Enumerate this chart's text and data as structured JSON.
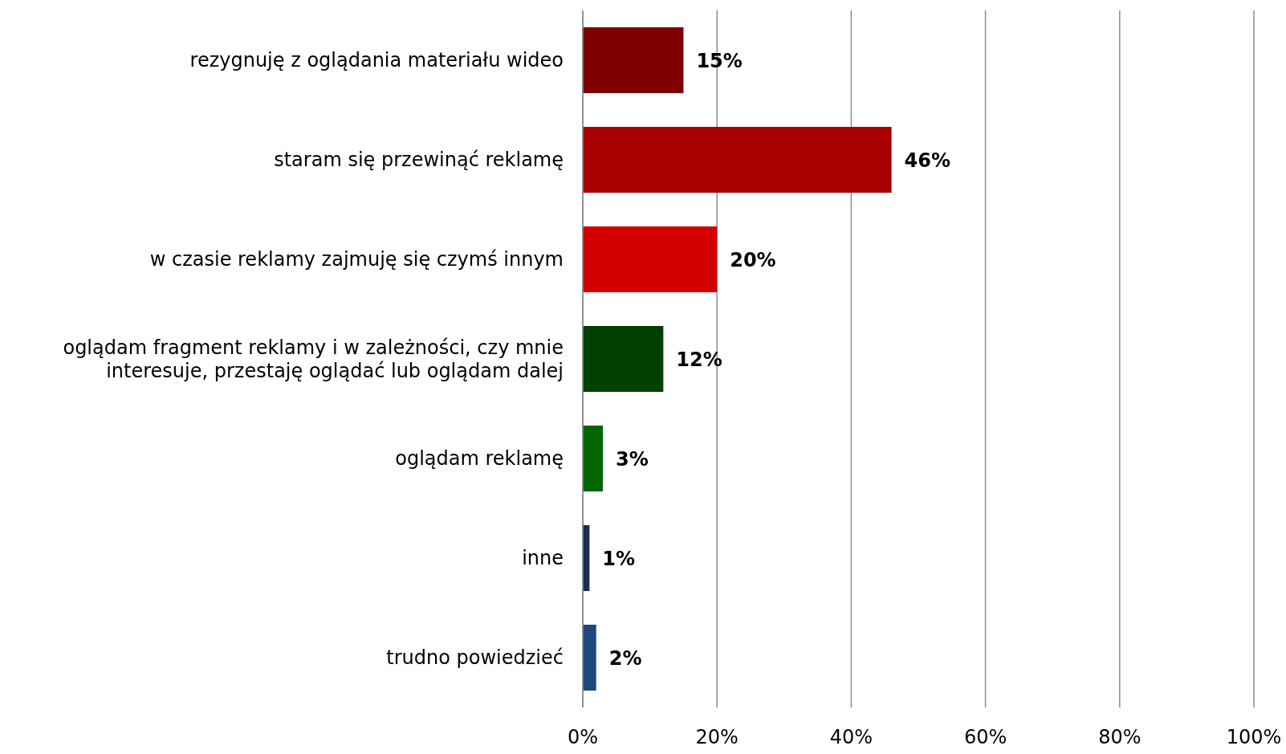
{
  "chart_data": {
    "type": "bar",
    "orientation": "horizontal",
    "categories": [
      "rezygnuję z oglądania materiału wideo",
      "staram się przewinąć reklamę",
      "w czasie reklamy zajmuję się czymś innym",
      "oglądam fragment reklamy i w zależności, czy mnie interesuje, przestaję oglądać lub oglądam dalej",
      "oglądam reklamę",
      "inne",
      "trudno powiedzieć"
    ],
    "values": [
      15,
      46,
      20,
      12,
      3,
      1,
      2
    ],
    "value_labels": [
      "15%",
      "46%",
      "20%",
      "12%",
      "3%",
      "1%",
      "2%"
    ],
    "colors": [
      "#800000",
      "#a80000",
      "#d40000",
      "#004000",
      "#006600",
      "#1a2e50",
      "#1f497d"
    ],
    "xlim": [
      0,
      100
    ],
    "xticks": [
      {
        "value": 0,
        "label": "0%"
      },
      {
        "value": 20,
        "label": "20%"
      },
      {
        "value": 40,
        "label": "40%"
      },
      {
        "value": 60,
        "label": "60%"
      },
      {
        "value": 80,
        "label": "80%"
      },
      {
        "value": 100,
        "label": "100%"
      }
    ],
    "grid": "x"
  }
}
